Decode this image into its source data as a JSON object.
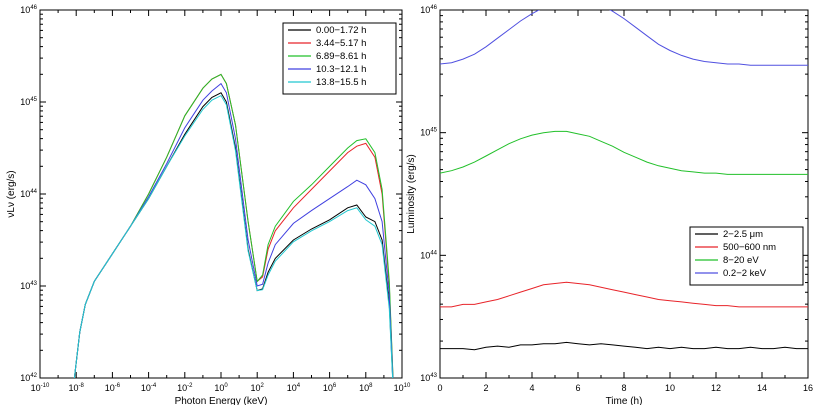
{
  "chart_data": [
    {
      "type": "line",
      "title": "",
      "xlabel": "Photon Energy (keV)",
      "ylabel": "νLν (erg/s)",
      "x_scale": "log",
      "y_scale": "log",
      "xlim_exp": [
        -10,
        10
      ],
      "ylim_exp": [
        42,
        46
      ],
      "x_ticks_exp": [
        -10,
        -8,
        -6,
        -4,
        -2,
        0,
        2,
        4,
        6,
        8,
        10
      ],
      "y_ticks_exp": [
        42,
        43,
        44,
        45,
        46
      ],
      "tick_base": "10",
      "legend_position": "top-right",
      "x_log10_keV": [
        -8.1,
        -7.8,
        -7.5,
        -7.0,
        -6.0,
        -5.0,
        -4.0,
        -3.0,
        -2.0,
        -1.0,
        -0.5,
        0.0,
        0.3,
        0.8,
        1.5,
        2.0,
        2.3,
        2.6,
        3.0,
        4.0,
        5.0,
        6.0,
        7.0,
        7.5,
        8.0,
        8.5,
        8.9,
        9.3,
        9.6
      ],
      "series": [
        {
          "name": "0.00−1.72 h",
          "color": "#000000",
          "values_log10": [
            42.0,
            42.5,
            42.8,
            43.05,
            43.35,
            43.65,
            43.95,
            44.3,
            44.65,
            44.95,
            45.05,
            45.1,
            45.0,
            44.5,
            43.4,
            42.95,
            42.97,
            43.15,
            43.3,
            43.5,
            43.62,
            43.72,
            43.85,
            43.88,
            43.75,
            43.7,
            43.5,
            42.8,
            41.5
          ]
        },
        {
          "name": "3.44−5.17 h",
          "color": "#e8242a",
          "values_log10": [
            42.0,
            42.5,
            42.8,
            43.05,
            43.35,
            43.65,
            44.0,
            44.4,
            44.85,
            45.15,
            45.25,
            45.3,
            45.2,
            44.75,
            43.7,
            43.05,
            43.1,
            43.4,
            43.6,
            43.85,
            44.05,
            44.25,
            44.45,
            44.52,
            44.55,
            44.4,
            44.0,
            43.0,
            41.5
          ]
        },
        {
          "name": "6.89−8.61 h",
          "color": "#22c02a",
          "values_log10": [
            42.0,
            42.5,
            42.8,
            43.05,
            43.35,
            43.65,
            44.0,
            44.4,
            44.85,
            45.15,
            45.25,
            45.3,
            45.2,
            44.75,
            43.7,
            43.05,
            43.12,
            43.45,
            43.65,
            43.92,
            44.1,
            44.3,
            44.5,
            44.58,
            44.6,
            44.45,
            44.05,
            43.05,
            41.5
          ]
        },
        {
          "name": "10.3−12.1 h",
          "color": "#4040e0",
          "values_log10": [
            42.0,
            42.5,
            42.8,
            43.05,
            43.35,
            43.65,
            43.97,
            44.33,
            44.72,
            45.02,
            45.12,
            45.2,
            45.1,
            44.6,
            43.5,
            43.0,
            43.02,
            43.25,
            43.45,
            43.68,
            43.82,
            43.95,
            44.08,
            44.15,
            44.1,
            43.95,
            43.7,
            42.9,
            41.5
          ]
        },
        {
          "name": "13.8−15.5 h",
          "color": "#22c8d0",
          "values_log10": [
            42.0,
            42.5,
            42.8,
            43.05,
            43.35,
            43.65,
            43.95,
            44.3,
            44.63,
            44.92,
            45.02,
            45.07,
            44.97,
            44.47,
            43.38,
            42.95,
            42.96,
            43.12,
            43.27,
            43.48,
            43.6,
            43.7,
            43.82,
            43.85,
            43.72,
            43.65,
            43.45,
            42.75,
            41.5
          ]
        }
      ]
    },
    {
      "type": "line",
      "title": "",
      "xlabel": "Time (h)",
      "ylabel": "Luminosity (erg/s)",
      "x_scale": "linear",
      "y_scale": "log",
      "xlim": [
        0,
        16
      ],
      "ylim_exp": [
        43,
        46
      ],
      "x_ticks": [
        0,
        2,
        4,
        6,
        8,
        10,
        12,
        14,
        16
      ],
      "y_ticks_exp": [
        43,
        44,
        45,
        46
      ],
      "tick_base": "10",
      "legend_position": "lower-right",
      "x": [
        0,
        0.5,
        1,
        1.5,
        2,
        2.5,
        3,
        3.5,
        4,
        4.5,
        5,
        5.5,
        6,
        6.5,
        7,
        7.5,
        8,
        8.5,
        9,
        9.5,
        10,
        10.5,
        11,
        11.5,
        12,
        12.5,
        13,
        13.5,
        14,
        14.5,
        15,
        15.5,
        16
      ],
      "series": [
        {
          "name": "2−2.5 μm",
          "color": "#000000",
          "values_log10": [
            43.24,
            43.24,
            43.24,
            43.23,
            43.25,
            43.26,
            43.25,
            43.27,
            43.27,
            43.28,
            43.28,
            43.29,
            43.28,
            43.27,
            43.28,
            43.27,
            43.26,
            43.25,
            43.24,
            43.25,
            43.24,
            43.25,
            43.24,
            43.24,
            43.25,
            43.24,
            43.24,
            43.25,
            43.24,
            43.24,
            43.25,
            43.24,
            43.24
          ]
        },
        {
          "name": "500−600 nm",
          "color": "#e8242a",
          "values_log10": [
            43.58,
            43.58,
            43.6,
            43.6,
            43.62,
            43.64,
            43.67,
            43.7,
            43.73,
            43.76,
            43.77,
            43.78,
            43.77,
            43.76,
            43.74,
            43.72,
            43.7,
            43.68,
            43.66,
            43.64,
            43.63,
            43.62,
            43.61,
            43.6,
            43.59,
            43.59,
            43.58,
            43.58,
            43.58,
            43.58,
            43.58,
            43.58,
            43.58
          ]
        },
        {
          "name": "8−20 eV",
          "color": "#22c02a",
          "values_log10": [
            44.67,
            44.69,
            44.72,
            44.76,
            44.81,
            44.86,
            44.91,
            44.95,
            44.98,
            45.0,
            45.01,
            45.01,
            44.99,
            44.97,
            44.93,
            44.89,
            44.84,
            44.8,
            44.76,
            44.73,
            44.71,
            44.69,
            44.68,
            44.67,
            44.67,
            44.66,
            44.66,
            44.66,
            44.66,
            44.66,
            44.66,
            44.66,
            44.66
          ]
        },
        {
          "name": "0.2−2 keV",
          "color": "#5050e0",
          "values_log10": [
            45.56,
            45.57,
            45.6,
            45.64,
            45.7,
            45.77,
            45.84,
            45.91,
            45.97,
            46.02,
            46.06,
            46.08,
            46.08,
            46.07,
            46.04,
            45.99,
            45.93,
            45.86,
            45.79,
            45.72,
            45.67,
            45.63,
            45.6,
            45.58,
            45.57,
            45.56,
            45.56,
            45.55,
            45.55,
            45.55,
            45.55,
            45.55,
            45.55
          ]
        }
      ]
    }
  ]
}
